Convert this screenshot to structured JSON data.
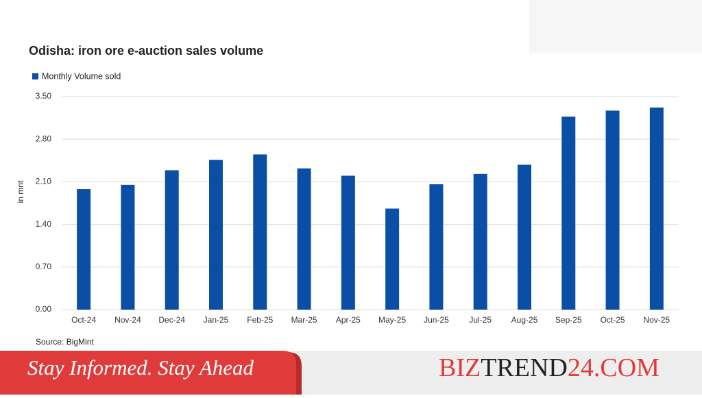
{
  "chart_data": {
    "type": "bar",
    "title": "Odisha: iron ore e-auction sales volume",
    "y_label": "in mnt",
    "source": "Source: BigMint",
    "categories": [
      "Oct-24",
      "Nov-24",
      "Dec-24",
      "Jan-25",
      "Feb-25",
      "Mar-25",
      "Apr-25",
      "May-25",
      "Jun-25",
      "Jul-25",
      "Aug-25",
      "Sep-25",
      "Oct-25",
      "Nov-25"
    ],
    "series": [
      {
        "name": "Monthly Volume sold",
        "color": "#0b4ea5",
        "values": [
          1.98,
          2.05,
          2.29,
          2.46,
          2.55,
          2.32,
          2.2,
          1.66,
          2.06,
          2.23,
          2.38,
          3.17,
          3.27,
          3.32
        ]
      }
    ],
    "ylim": [
      0,
      3.5
    ],
    "yticks": [
      {
        "value": 0,
        "label": "0.00"
      },
      {
        "value": 0.7,
        "label": "0.70"
      },
      {
        "value": 1.4,
        "label": "1.40"
      },
      {
        "value": 2.1,
        "label": "2.10"
      },
      {
        "value": 2.8,
        "label": "2.80"
      },
      {
        "value": 3.5,
        "label": "3.50"
      }
    ],
    "grid": true
  },
  "banner": {
    "tagline": "Stay Informed. Stay Ahead",
    "brand": [
      "BIZ",
      "TREND",
      "24.COM"
    ]
  }
}
